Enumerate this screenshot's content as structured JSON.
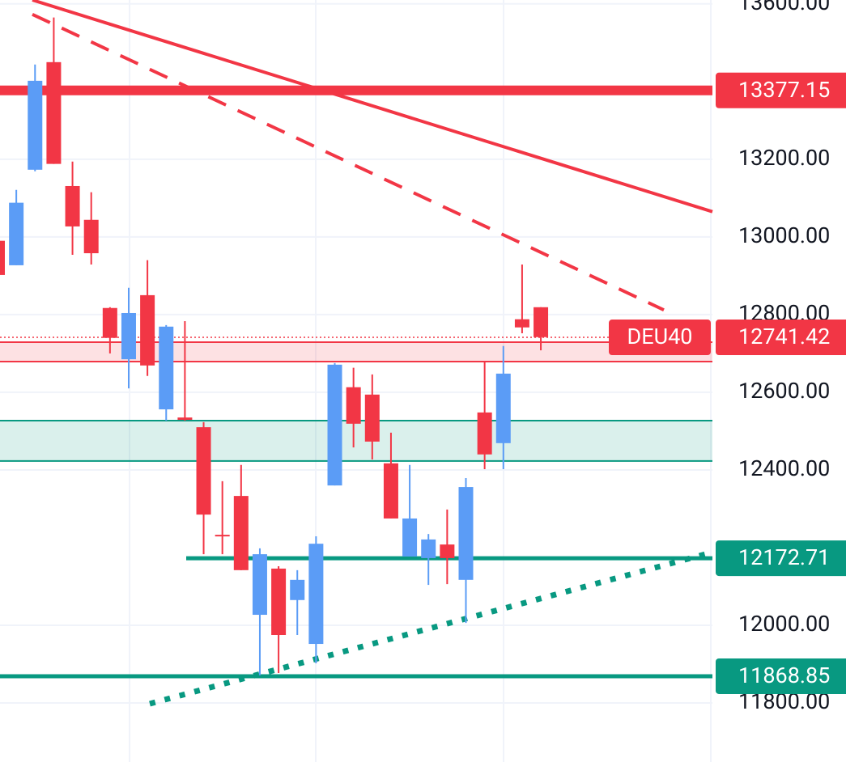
{
  "chart_data": {
    "type": "candlestick",
    "symbol": "DEU40",
    "ylim": [
      11648,
      13610
    ],
    "yticks": [
      {
        "value": 13600,
        "label": "13600.00"
      },
      {
        "value": 13200,
        "label": "13200.00"
      },
      {
        "value": 13000,
        "label": "13000.00"
      },
      {
        "value": 12800,
        "label": "12800.00"
      },
      {
        "value": 12600,
        "label": "12600.00"
      },
      {
        "value": 12400,
        "label": "12400.00"
      },
      {
        "value": 12000,
        "label": "12000.00"
      },
      {
        "value": 11800,
        "label": "11800.00"
      }
    ],
    "grid": true,
    "up_color": "#5b9cf6",
    "down_color": "#f23645",
    "open": [
      12990,
      12927,
      13173,
      13450,
      13131,
      13044,
      12817,
      12685,
      12850,
      12556,
      12535,
      12510,
      12233,
      12333,
      12027,
      12146,
      12065,
      11952,
      12360,
      12613,
      12594,
      12417,
      12177,
      12173,
      12208,
      12117,
      12548,
      12469,
      12788,
      12819
    ],
    "high": [
      13006,
      13121,
      13444,
      13565,
      13194,
      13115,
      12819,
      12869,
      12940,
      12773,
      12783,
      12523,
      12371,
      12413,
      12198,
      12152,
      12142,
      12229,
      12675,
      12663,
      12646,
      12496,
      12413,
      12235,
      12298,
      12379,
      12679,
      12719,
      12929,
      12819
    ],
    "low": [
      12902,
      12927,
      13169,
      13188,
      12954,
      12929,
      12700,
      12610,
      12642,
      12527,
      12527,
      12183,
      12183,
      12142,
      11871,
      11877,
      11975,
      11902,
      12360,
      12458,
      12427,
      12275,
      12177,
      12104,
      12106,
      12006,
      12402,
      12402,
      12752,
      12708
    ],
    "close": [
      12902,
      13088,
      13402,
      13188,
      13027,
      12958,
      12740,
      12804,
      12669,
      12769,
      12529,
      12285,
      12229,
      12142,
      12183,
      11975,
      12117,
      12210,
      12671,
      12519,
      12473,
      12275,
      12275,
      12221,
      12173,
      12356,
      12440,
      12648,
      12767,
      12742
    ],
    "levels": [
      {
        "value": 13377.15,
        "color": "#f23645"
      },
      {
        "value": 12172.71,
        "color": "#089981"
      },
      {
        "value": 11868.85,
        "color": "#089981"
      }
    ],
    "current_price": 12741.42,
    "zones": [
      {
        "from": 12679,
        "to": 12729,
        "color": "#f23645"
      },
      {
        "from": 12423,
        "to": 12527,
        "color": "#089981"
      }
    ],
    "trendlines": [
      {
        "start": 13610,
        "end": 13065,
        "style": "solid",
        "color": "#f23645"
      },
      {
        "start": 13573,
        "end": 12812,
        "style": "dashed",
        "color": "#f23645"
      },
      {
        "start": 11798,
        "end": 12188,
        "style": "dotted",
        "color": "#089981"
      }
    ]
  }
}
